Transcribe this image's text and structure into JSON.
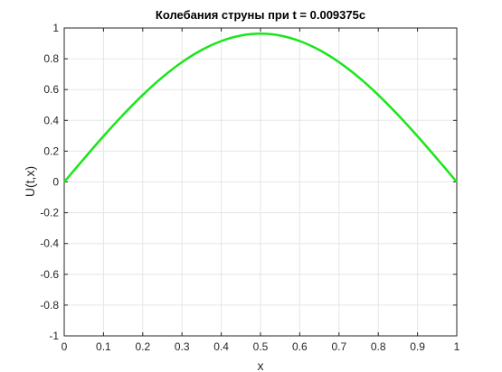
{
  "chart_data": {
    "type": "line",
    "title": "Колебания струны при t = 0.009375c",
    "xlabel": "x",
    "ylabel": "U(t,x)",
    "xlim": [
      0,
      1
    ],
    "ylim": [
      -1,
      1
    ],
    "grid": true,
    "x_ticks": [
      "0",
      "0.1",
      "0.2",
      "0.3",
      "0.4",
      "0.5",
      "0.6",
      "0.7",
      "0.8",
      "0.9",
      "1"
    ],
    "y_ticks": [
      "-1",
      "-0.8",
      "-0.6",
      "-0.4",
      "-0.2",
      "0",
      "0.2",
      "0.4",
      "0.6",
      "0.8",
      "1"
    ],
    "series": [
      {
        "color": "#19e619",
        "x": [
          0,
          0.05,
          0.1,
          0.15,
          0.2,
          0.25,
          0.3,
          0.35,
          0.4,
          0.45,
          0.5,
          0.55,
          0.6,
          0.65,
          0.7,
          0.75,
          0.8,
          0.85,
          0.9,
          0.95,
          1
        ],
        "y": [
          0,
          0.15,
          0.297,
          0.436,
          0.565,
          0.68,
          0.778,
          0.857,
          0.915,
          0.951,
          0.963,
          0.951,
          0.915,
          0.857,
          0.778,
          0.68,
          0.565,
          0.436,
          0.297,
          0.15,
          0
        ]
      }
    ]
  }
}
